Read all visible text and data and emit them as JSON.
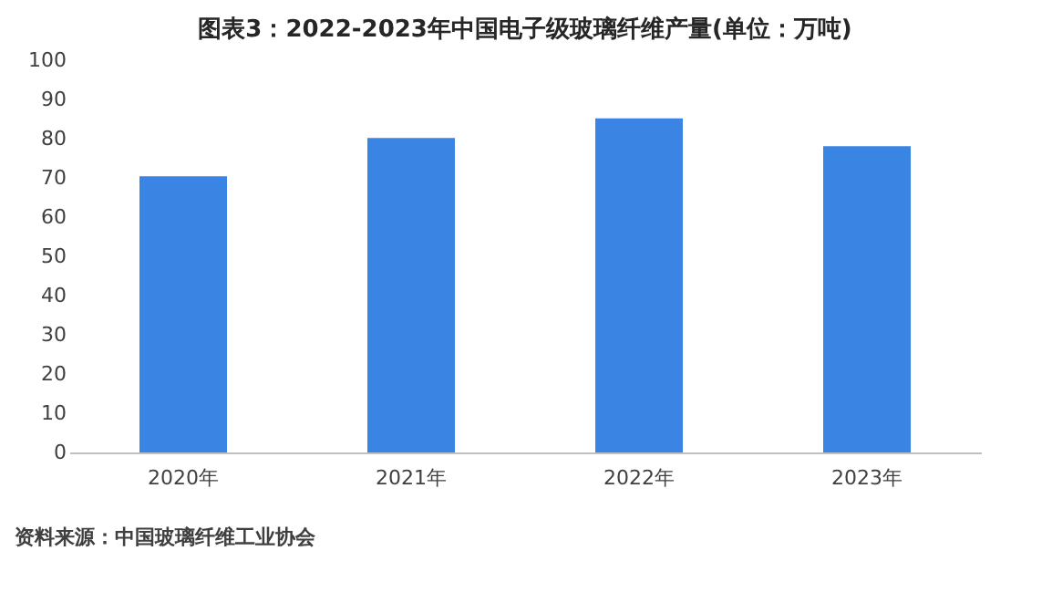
{
  "chart_data": {
    "type": "bar",
    "title": "图表3：2022-2023年中国电子级玻璃纤维产量(单位：万吨)",
    "categories": [
      "2020年",
      "2021年",
      "2022年",
      "2023年"
    ],
    "values": [
      70.4,
      80.2,
      85.2,
      78.1
    ],
    "color": "#3a84e4",
    "ylim": [
      0,
      100
    ],
    "yticks": [
      0,
      10,
      20,
      30,
      40,
      50,
      60,
      70,
      80,
      90,
      100
    ],
    "grid": false,
    "annotations": [
      "资料来源：中国玻璃纤维工业协会"
    ]
  }
}
